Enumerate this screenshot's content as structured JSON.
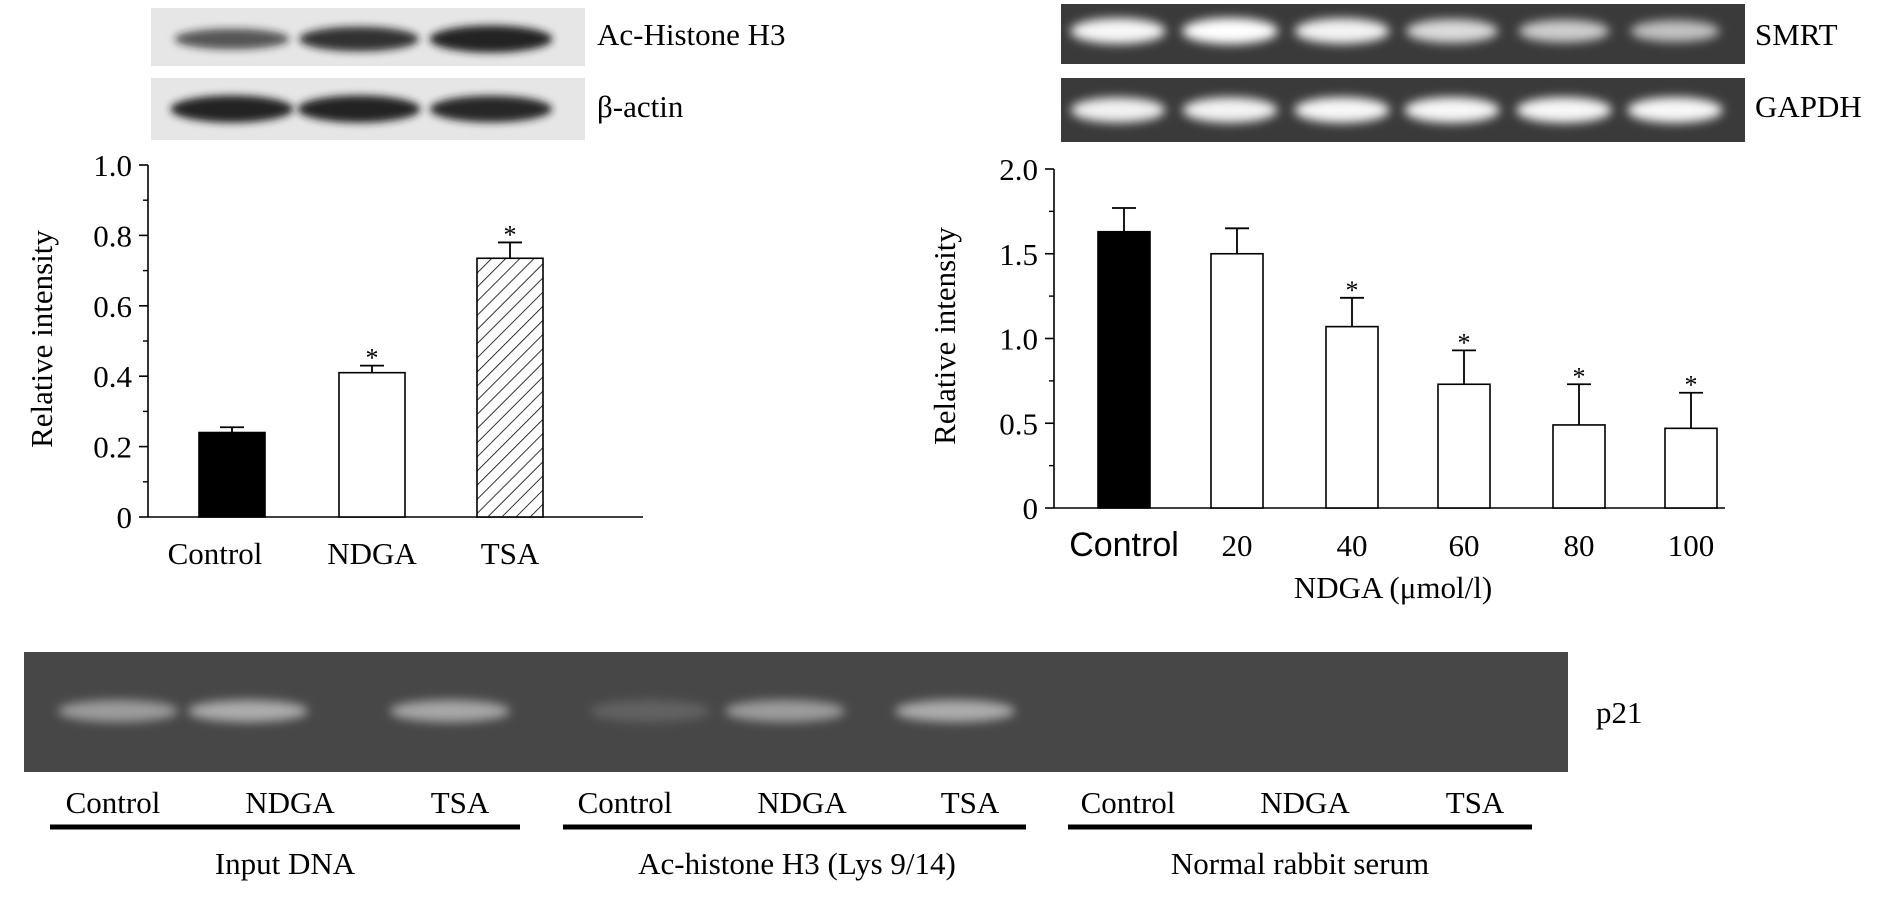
{
  "colors": {
    "background": "#ffffff",
    "ink": "#000000",
    "blot_bg": "#e6e6e6",
    "blot_band": "#1a1a1a",
    "gel_bg": "#3a3a3a",
    "gel_band": "#ffffff",
    "chip_gel_bg": "#474747",
    "chip_band": "#d6d6d6",
    "bar_black": "#000000",
    "bar_white": "#ffffff"
  },
  "panel_a": {
    "blot_rows": [
      {
        "label": "Ac-Histone H3",
        "band_strength": [
          0.55,
          0.8,
          0.95
        ]
      },
      {
        "label": "β-actin",
        "band_strength": [
          0.95,
          0.95,
          0.92
        ]
      }
    ]
  },
  "panel_b": {
    "gel_rows": [
      {
        "label": "SMRT",
        "band_strength": [
          0.95,
          1.0,
          0.92,
          0.75,
          0.65,
          0.55
        ]
      },
      {
        "label": "GAPDH",
        "band_strength": [
          0.9,
          0.92,
          0.95,
          0.95,
          0.95,
          0.95
        ]
      }
    ]
  },
  "panel_c": {
    "gel_label": "p21",
    "lane_band_strength": [
      0.6,
      0.75,
      0.7,
      0.05,
      0.6,
      0.75,
      0.0,
      0.0,
      0.0
    ],
    "lane_labels": [
      "Control",
      "NDGA",
      "TSA",
      "Control",
      "NDGA",
      "TSA",
      "Control",
      "NDGA",
      "TSA"
    ],
    "group_labels": [
      "Input DNA",
      "Ac-histone H3  (Lys 9/14)",
      "Normal rabbit serum"
    ]
  },
  "chart_data": [
    {
      "type": "bar",
      "categories": [
        "Control",
        "NDGA",
        "TSA"
      ],
      "values": [
        0.24,
        0.41,
        0.735
      ],
      "errors": [
        0.015,
        0.02,
        0.045
      ],
      "significant": [
        false,
        true,
        true
      ],
      "fills": [
        "black",
        "white",
        "hatched"
      ],
      "ylabel": "Relative intensity",
      "xlabel": "",
      "ylim": [
        0,
        1.0
      ],
      "yticks": [
        0,
        0.2,
        0.4,
        0.6,
        0.8,
        1.0
      ],
      "ytick_labels": [
        "0",
        "0.2",
        "0.4",
        "0.6",
        "0.8",
        "1.0"
      ],
      "grid": false,
      "sig_marker": "*"
    },
    {
      "type": "bar",
      "categories": [
        "Control",
        "20",
        "40",
        "60",
        "80",
        "100"
      ],
      "values": [
        1.63,
        1.5,
        1.07,
        0.73,
        0.49,
        0.47
      ],
      "errors": [
        0.14,
        0.15,
        0.17,
        0.2,
        0.24,
        0.21
      ],
      "significant": [
        false,
        false,
        true,
        true,
        true,
        true
      ],
      "fills": [
        "black",
        "white",
        "white",
        "white",
        "white",
        "white"
      ],
      "ylabel": "Relative intensity",
      "xlabel": "NDGA (μmol/l)",
      "ylim": [
        0,
        2.0
      ],
      "yticks": [
        0,
        0.5,
        1.0,
        1.5,
        2.0
      ],
      "ytick_labels": [
        "0",
        "0.5",
        "1.0",
        "1.5",
        "2.0"
      ],
      "grid": false,
      "sig_marker": "*"
    }
  ]
}
